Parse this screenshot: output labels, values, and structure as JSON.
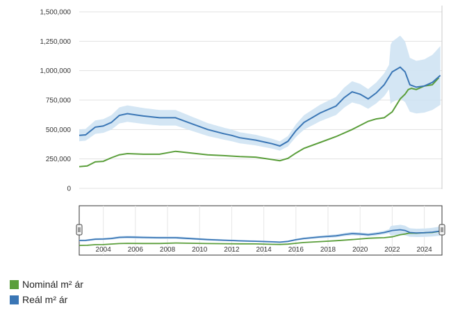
{
  "chart_data": {
    "type": "line",
    "title": "",
    "xlabel": "",
    "ylabel": "",
    "ylim": [
      0,
      1500000
    ],
    "xlim": [
      2003.0,
      2025.6
    ],
    "y_ticks": [
      0,
      250000,
      500000,
      750000,
      1000000,
      1250000,
      1500000
    ],
    "y_tick_labels": [
      "0",
      "250,000",
      "500,000",
      "750,000",
      "1,000,000",
      "1,250,000",
      "1,500,000"
    ],
    "navigator_x_ticks": [
      2004,
      2006,
      2008,
      2010,
      2012,
      2014,
      2016,
      2018,
      2020,
      2022,
      2024
    ],
    "navigator_x_tick_labels": [
      "2004",
      "2006",
      "2008",
      "2010",
      "2012",
      "2014",
      "2016",
      "2018",
      "2020",
      "2022",
      "2024"
    ],
    "grid": true,
    "legend_position": "bottom-left",
    "series": [
      {
        "name": "Nominál m² ár",
        "color": "#5a9e3a",
        "x": [
          2003.0,
          2003.5,
          2004.0,
          2004.5,
          2005.0,
          2005.5,
          2006.0,
          2007.0,
          2008.0,
          2009.0,
          2010.0,
          2011.0,
          2012.0,
          2013.0,
          2014.0,
          2015.0,
          2015.5,
          2016.0,
          2016.5,
          2017.0,
          2018.0,
          2019.0,
          2020.0,
          2021.0,
          2021.5,
          2022.0,
          2022.5,
          2023.0,
          2023.3,
          2023.5,
          2023.7,
          2024.0,
          2024.5,
          2025.0,
          2025.4
        ],
        "y": [
          185000,
          190000,
          225000,
          230000,
          260000,
          285000,
          295000,
          290000,
          290000,
          315000,
          300000,
          285000,
          278000,
          270000,
          265000,
          245000,
          235000,
          255000,
          300000,
          340000,
          390000,
          440000,
          500000,
          570000,
          590000,
          600000,
          650000,
          760000,
          800000,
          840000,
          850000,
          840000,
          870000,
          880000,
          940000
        ]
      },
      {
        "name": "Reál m² ár",
        "color": "#3a76b5",
        "x": [
          2003.0,
          2003.4,
          2004.0,
          2004.5,
          2005.0,
          2005.5,
          2006.0,
          2006.5,
          2007.0,
          2008.0,
          2009.0,
          2010.0,
          2011.0,
          2012.0,
          2012.5,
          2013.0,
          2014.0,
          2015.0,
          2015.5,
          2016.0,
          2016.5,
          2017.0,
          2018.0,
          2019.0,
          2019.5,
          2020.0,
          2020.5,
          2021.0,
          2021.5,
          2022.0,
          2022.5,
          2023.0,
          2023.3,
          2023.6,
          2024.0,
          2024.5,
          2025.0,
          2025.5
        ],
        "y": [
          450000,
          455000,
          520000,
          530000,
          560000,
          620000,
          635000,
          625000,
          615000,
          600000,
          600000,
          550000,
          500000,
          465000,
          450000,
          430000,
          410000,
          380000,
          360000,
          400000,
          490000,
          560000,
          640000,
          700000,
          770000,
          820000,
          800000,
          760000,
          810000,
          880000,
          990000,
          1030000,
          990000,
          880000,
          860000,
          870000,
          900000,
          960000
        ]
      }
    ]
  },
  "legend": {
    "items": [
      {
        "label": "Nominál m² ár",
        "color": "#5a9e3a"
      },
      {
        "label": "Reál m² ár",
        "color": "#3a76b5"
      }
    ]
  }
}
